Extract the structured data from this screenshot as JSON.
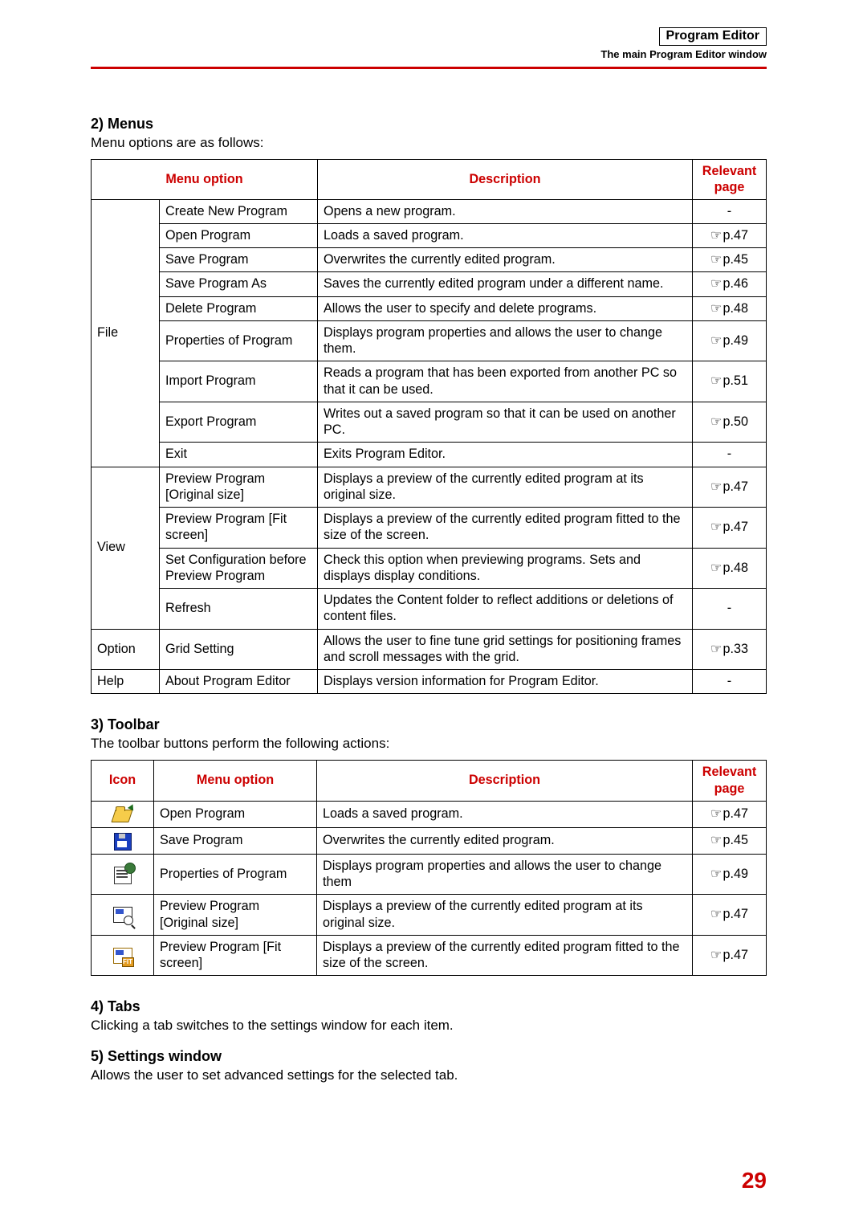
{
  "header": {
    "box_title": "Program Editor",
    "subtitle": "The main Program Editor window"
  },
  "accent_color": "#cc0000",
  "page_ref_glyph": "☞",
  "sections": {
    "menus": {
      "heading": "2) Menus",
      "intro": "Menu options are as follows:",
      "columns": {
        "menu_option": "Menu option",
        "description": "Description",
        "relevant_page": "Relevant page"
      },
      "groups": [
        {
          "name": "File",
          "rows": [
            {
              "option": "Create New Program",
              "desc": "Opens a new program.",
              "page": "-"
            },
            {
              "option": "Open Program",
              "desc": "Loads a saved program.",
              "page": "p.47"
            },
            {
              "option": "Save Program",
              "desc": "Overwrites the currently edited program.",
              "page": "p.45"
            },
            {
              "option": "Save Program As",
              "desc": "Saves the currently edited program under a different name.",
              "page": "p.46"
            },
            {
              "option": "Delete Program",
              "desc": "Allows the user to specify and delete programs.",
              "page": "p.48"
            },
            {
              "option": "Properties of Program",
              "desc": "Displays program properties and allows the user to change them.",
              "page": "p.49"
            },
            {
              "option": "Import Program",
              "desc": "Reads a program that has been exported from another PC so that it can be used.",
              "page": "p.51"
            },
            {
              "option": "Export Program",
              "desc": "Writes out a saved program so that it can be used on another PC.",
              "page": "p.50"
            },
            {
              "option": "Exit",
              "desc": "Exits Program Editor.",
              "page": "-"
            }
          ]
        },
        {
          "name": "View",
          "rows": [
            {
              "option": "Preview Program [Original size]",
              "desc": "Displays a preview of the currently edited program at its original size.",
              "page": "p.47"
            },
            {
              "option": "Preview Program [Fit screen]",
              "desc": "Displays a preview of the currently edited program fitted to the size of the screen.",
              "page": "p.47"
            },
            {
              "option": "Set Configuration before Preview Program",
              "desc": "Check this option when previewing programs. Sets and displays display conditions.",
              "page": "p.48"
            },
            {
              "option": "Refresh",
              "desc": "Updates the Content folder to reflect additions or deletions of content files.",
              "page": "-"
            }
          ]
        },
        {
          "name": "Option",
          "rows": [
            {
              "option": "Grid Setting",
              "desc": "Allows the user to fine tune grid settings for positioning frames and scroll messages with the grid.",
              "page": "p.33"
            }
          ]
        },
        {
          "name": "Help",
          "rows": [
            {
              "option": "About Program Editor",
              "desc": "Displays version information for Program Editor.",
              "page": "-"
            }
          ]
        }
      ]
    },
    "toolbar": {
      "heading": "3) Toolbar",
      "intro": "The toolbar buttons perform the following actions:",
      "columns": {
        "icon": "Icon",
        "menu_option": "Menu option",
        "description": "Description",
        "relevant_page": "Relevant page"
      },
      "rows": [
        {
          "icon": "open",
          "option": "Open Program",
          "desc": "Loads a saved program.",
          "page": "p.47"
        },
        {
          "icon": "save",
          "option": "Save Program",
          "desc": "Overwrites the currently edited program.",
          "page": "p.45"
        },
        {
          "icon": "prop",
          "option": "Properties of Program",
          "desc": "Displays program properties and allows the user to change them",
          "page": "p.49"
        },
        {
          "icon": "prev1",
          "option": "Preview Program [Original size]",
          "desc": "Displays a preview of the currently edited program at its original size.",
          "page": "p.47"
        },
        {
          "icon": "prev2",
          "option": "Preview Program [Fit screen]",
          "desc": "Displays a preview of the currently edited program fitted to the size of the screen.",
          "page": "p.47"
        }
      ]
    },
    "tabs": {
      "heading": "4) Tabs",
      "intro": "Clicking a tab switches to the settings window for each item."
    },
    "settings": {
      "heading": "5) Settings window",
      "intro": "Allows the user to set advanced settings for the selected tab."
    }
  },
  "page_number": "29"
}
